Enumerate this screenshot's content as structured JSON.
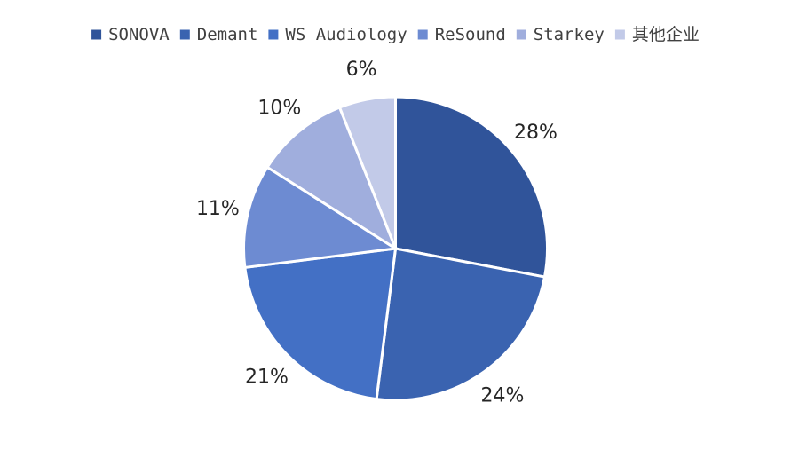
{
  "chart_data": {
    "type": "pie",
    "categories": [
      "SONOVA",
      "Demant",
      "WS Audiology",
      "ReSound",
      "Starkey",
      "其他企业"
    ],
    "values": [
      28,
      24,
      21,
      11,
      10,
      6
    ],
    "labels": [
      "28%",
      "24%",
      "21%",
      "11%",
      "10%",
      "6%"
    ],
    "colors": [
      "#30549a",
      "#3a63b0",
      "#4370c5",
      "#6d8bd2",
      "#a0aedd",
      "#c2cae8"
    ],
    "legend_position": "top",
    "start": "12 o'clock",
    "direction": "clockwise"
  }
}
